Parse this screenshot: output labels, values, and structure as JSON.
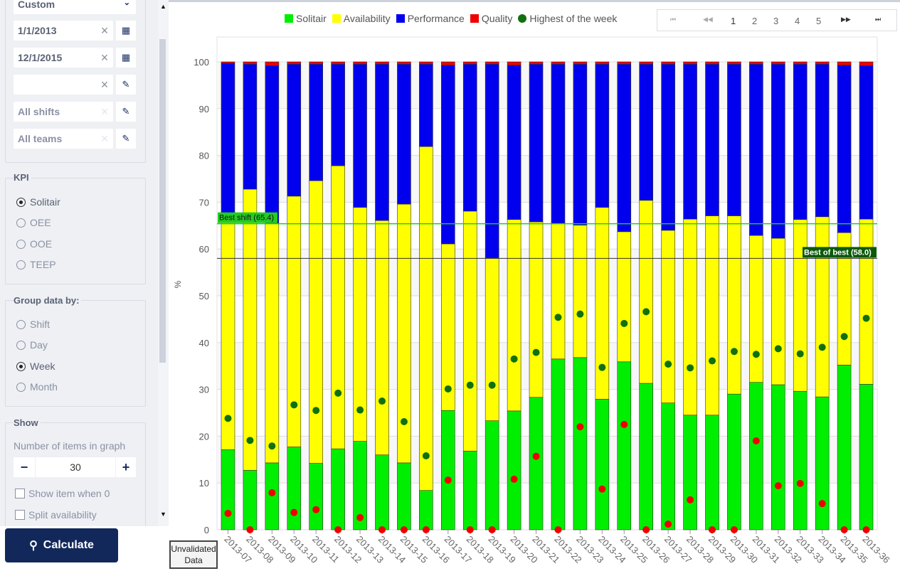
{
  "sidebar": {
    "range_select": "Custom",
    "start_date": "1/1/2013",
    "end_date": "12/1/2015",
    "empty_field": "",
    "shifts": "All shifts",
    "teams": "All teams",
    "kpi": {
      "title": "KPI",
      "options": [
        "Solitair",
        "OEE",
        "OOE",
        "TEEP"
      ],
      "selected": 0
    },
    "group": {
      "title": "Group data by:",
      "options": [
        "Shift",
        "Day",
        "Week",
        "Month"
      ],
      "selected": 2
    },
    "show": {
      "title": "Show",
      "items_label": "Number of items in graph",
      "items_value": "30",
      "show_zero": "Show item when 0",
      "split_availability": "Split availability"
    },
    "calculate": "Calculate"
  },
  "pager": {
    "pages": [
      "1",
      "2",
      "3",
      "4",
      "5"
    ],
    "current": "1"
  },
  "unvalidated": "Unvalidated Data",
  "chart_data": {
    "type": "bar",
    "stacked": true,
    "ylabel": "%",
    "ylim": [
      0,
      100
    ],
    "yticks": [
      "0",
      "10",
      "20",
      "30",
      "40",
      "50",
      "60",
      "70",
      "80",
      "90",
      "100"
    ],
    "legend": [
      "Solitair",
      "Availability",
      "Performance",
      "Quality",
      "Highest of the week"
    ],
    "colors": {
      "Solitair": "#00ee00",
      "Availability": "#ffff00",
      "Performance": "#0000ee",
      "Quality": "#ee0000",
      "Highest of the week": "#107010",
      "low": "#ee0000"
    },
    "categories": [
      "2013-07",
      "2013-08",
      "2013-09",
      "2013-10",
      "2013-11",
      "2013-12",
      "2013-13",
      "2013-14",
      "2013-15",
      "2013-16",
      "2013-17",
      "2013-18",
      "2013-19",
      "2013-20",
      "2013-21",
      "2013-22",
      "2013-23",
      "2013-24",
      "2013-25",
      "2013-26",
      "2013-27",
      "2013-28",
      "2013-29",
      "2013-30",
      "2013-31",
      "2013-32",
      "2013-33",
      "2013-34",
      "2013-35",
      "2013-36"
    ],
    "solitair": [
      17.1,
      12.7,
      14.3,
      17.7,
      14.2,
      17.3,
      18.9,
      16.0,
      14.3,
      8.4,
      25.5,
      16.8,
      23.3,
      25.4,
      28.3,
      36.5,
      36.8,
      27.9,
      35.9,
      31.3,
      27.1,
      24.5,
      24.5,
      29.0,
      31.5,
      31.0,
      29.6,
      28.4,
      35.2,
      31.1
    ],
    "availability_top": [
      66.0,
      72.8,
      65.5,
      71.3,
      74.6,
      77.8,
      68.9,
      66.1,
      69.6,
      81.9,
      61.1,
      68.1,
      58.1,
      66.3,
      65.8,
      65.5,
      65.1,
      68.9,
      63.7,
      70.4,
      64.0,
      66.4,
      67.1,
      67.1,
      62.9,
      62.3,
      66.3,
      66.9,
      63.5,
      66.4
    ],
    "performance_top": [
      99.7,
      99.5,
      99.2,
      99.5,
      99.5,
      99.5,
      99.5,
      99.5,
      99.5,
      99.5,
      99.3,
      99.5,
      99.5,
      99.3,
      99.5,
      99.5,
      99.5,
      99.5,
      99.5,
      99.5,
      99.5,
      99.5,
      99.5,
      99.5,
      99.5,
      99.5,
      99.5,
      99.5,
      99.3,
      99.2
    ],
    "highest_of_week": [
      23.8,
      19.1,
      17.9,
      26.7,
      25.5,
      29.2,
      25.6,
      27.5,
      23.1,
      15.8,
      30.1,
      30.9,
      30.9,
      36.5,
      37.9,
      45.4,
      46.1,
      34.7,
      44.1,
      46.6,
      35.4,
      34.6,
      36.1,
      38.1,
      37.5,
      38.7,
      37.6,
      39.0,
      41.3,
      45.2
    ],
    "low_points": [
      3.5,
      0,
      7.9,
      3.7,
      4.3,
      0,
      2.6,
      0,
      0,
      0,
      10.6,
      0,
      0,
      10.8,
      15.7,
      0,
      22.0,
      8.7,
      22.5,
      0,
      1.2,
      6.4,
      0,
      0,
      19.0,
      9.4,
      9.9,
      5.6,
      0,
      0
    ],
    "reference_lines": [
      {
        "label": "Best shift (65.4)",
        "value": 65.4,
        "color": "#22cc22"
      },
      {
        "label": "Best of best (58.0)",
        "value": 58.0,
        "color": "#0a5a0a"
      }
    ]
  }
}
